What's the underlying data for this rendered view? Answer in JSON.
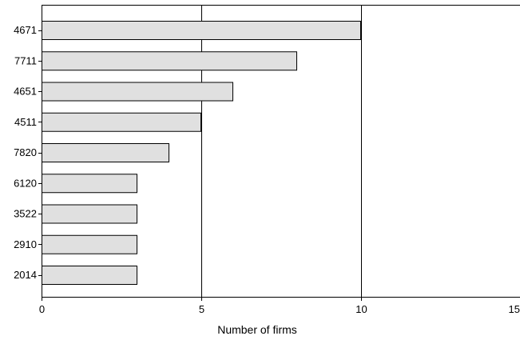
{
  "chart_data": {
    "type": "bar",
    "orientation": "horizontal",
    "categories": [
      "4671",
      "7711",
      "4651",
      "4511",
      "7820",
      "6120",
      "3522",
      "2910",
      "2014"
    ],
    "values": [
      10,
      8,
      6,
      5,
      4,
      3,
      3,
      3,
      3
    ],
    "xlabel": "Number of firms",
    "ylabel": "",
    "xlim": [
      0,
      15
    ],
    "xticks": [
      0,
      5,
      10,
      15
    ],
    "grid": "vertical",
    "bar_color": "#e0e0e0",
    "bar_edge_color": "#000000"
  }
}
